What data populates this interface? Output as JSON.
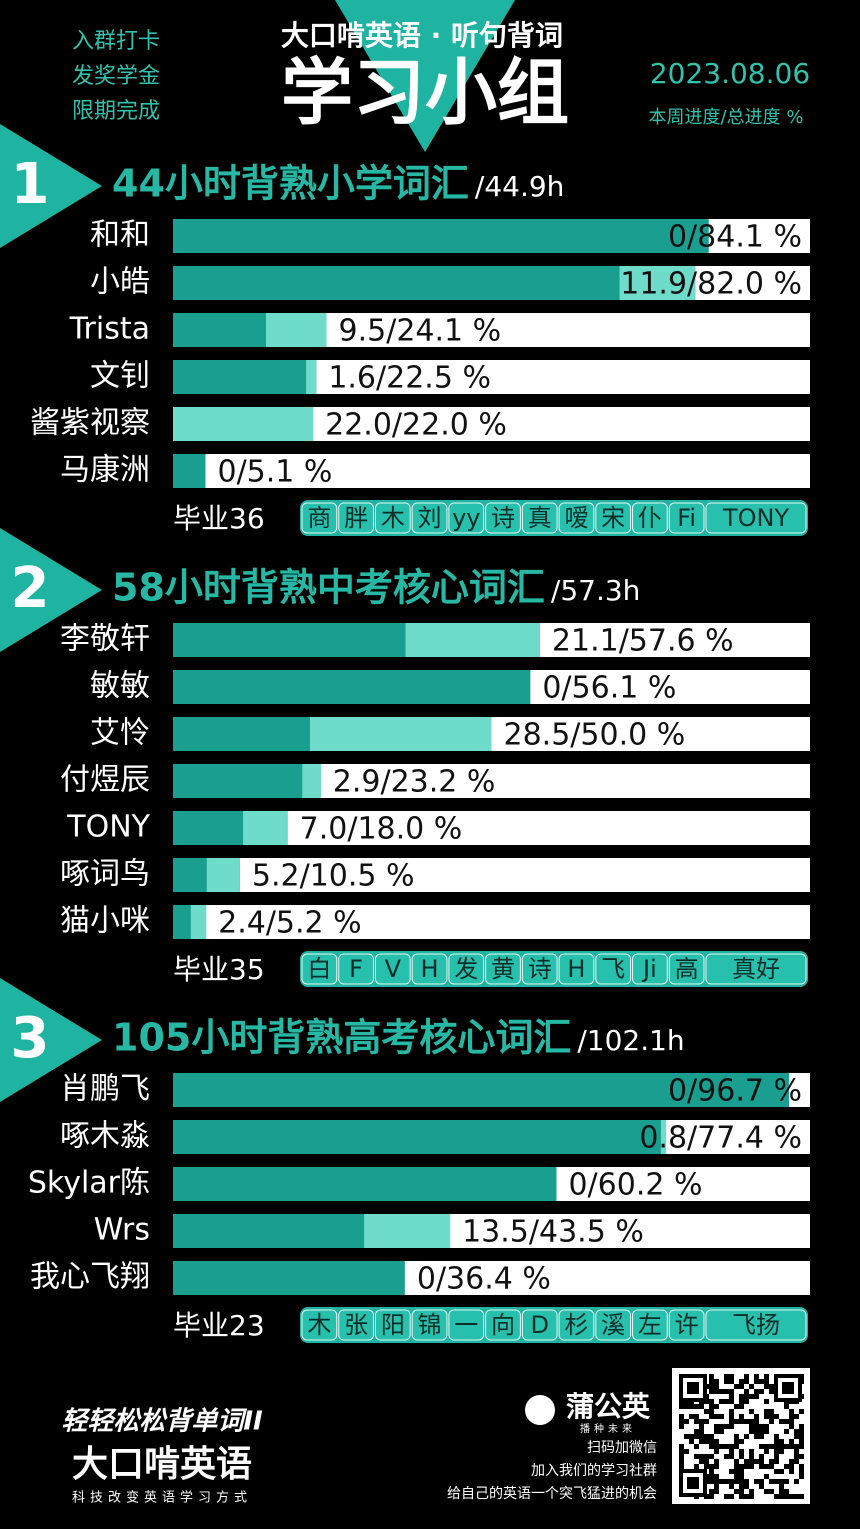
{
  "header": {
    "side_notes": [
      "入群打卡",
      "发奖学金",
      "限期完成"
    ],
    "brand_title": "大口啃英语 · 听句背词",
    "title": "学习小组",
    "date": "2023.08.06",
    "legend_note": "本周进度/总进度 %"
  },
  "chart_data": [
    {
      "type": "bar",
      "number": "1",
      "title": "44小时背熟小学词汇",
      "total": "/44.9h",
      "xlim": [
        0,
        100
      ],
      "categories": [
        "和和",
        "小皓",
        "Trista",
        "文钊",
        "酱紫视察",
        "马康洲"
      ],
      "series": [
        {
          "color": "#1a9e8f",
          "values": [
            84.1,
            82.0,
            24.1,
            22.5,
            22.0,
            5.1
          ]
        },
        {
          "color": "#6fdccb",
          "values": [
            0,
            11.9,
            9.5,
            1.6,
            22.0,
            0
          ]
        }
      ],
      "value_labels": [
        "0/84.1 %",
        "11.9/82.0 %",
        "9.5/24.1 %",
        "1.6/22.5 %",
        "22.0/22.0 %",
        "0/5.1 %"
      ],
      "graduates_label": "毕业36",
      "graduates": [
        "商",
        "胖",
        "木",
        "刘",
        "yy",
        "诗",
        "真",
        "嗳",
        "宋",
        "仆",
        "Fi",
        "TONY"
      ]
    },
    {
      "type": "bar",
      "number": "2",
      "title": "58小时背熟中考核心词汇",
      "total": "/57.3h",
      "xlim": [
        0,
        100
      ],
      "categories": [
        "李敬轩",
        "敏敏",
        "艾怜",
        "付煜辰",
        "TONY",
        "啄词鸟",
        "猫小咪"
      ],
      "series": [
        {
          "color": "#1a9e8f",
          "values": [
            57.6,
            56.1,
            50.0,
            23.2,
            18.0,
            10.5,
            5.2
          ]
        },
        {
          "color": "#6fdccb",
          "values": [
            21.1,
            0,
            28.5,
            2.9,
            7.0,
            5.2,
            2.4
          ]
        }
      ],
      "value_labels": [
        "21.1/57.6 %",
        "0/56.1 %",
        "28.5/50.0 %",
        "2.9/23.2 %",
        "7.0/18.0 %",
        "5.2/10.5 %",
        "2.4/5.2 %"
      ],
      "graduates_label": "毕业35",
      "graduates": [
        "白",
        "F",
        "V",
        "H",
        "发",
        "黄",
        "诗",
        "H",
        "飞",
        "Ji",
        "高",
        "真好"
      ]
    },
    {
      "type": "bar",
      "number": "3",
      "title": "105小时背熟高考核心词汇",
      "total": "/102.1h",
      "xlim": [
        0,
        100
      ],
      "categories": [
        "肖鹏飞",
        "啄木淼",
        "Skylar陈",
        "Wrs",
        "我心飞翔"
      ],
      "series": [
        {
          "color": "#1a9e8f",
          "values": [
            96.7,
            77.4,
            60.2,
            43.5,
            36.4
          ]
        },
        {
          "color": "#6fdccb",
          "values": [
            0,
            0.8,
            0,
            13.5,
            0
          ]
        }
      ],
      "value_labels": [
        "0/96.7 %",
        "0.8/77.4 %",
        "0/60.2 %",
        "13.5/43.5 %",
        "0/36.4 %"
      ],
      "graduates_label": "毕业23",
      "graduates": [
        "木",
        "张",
        "阳",
        "锦",
        "一",
        "向",
        "D",
        "杉",
        "溪",
        "左",
        "许",
        "飞扬"
      ]
    }
  ],
  "footer": {
    "slogan": "轻轻松松背单词II",
    "brand": "大口啃英语",
    "tagline": "科技改变英语学习方式",
    "partner": "蒲公英",
    "partner_tag": "播种未来",
    "lines": [
      "扫码加微信",
      "加入我们的学习社群",
      "给自己的英语一个突飞猛进的机会"
    ]
  }
}
